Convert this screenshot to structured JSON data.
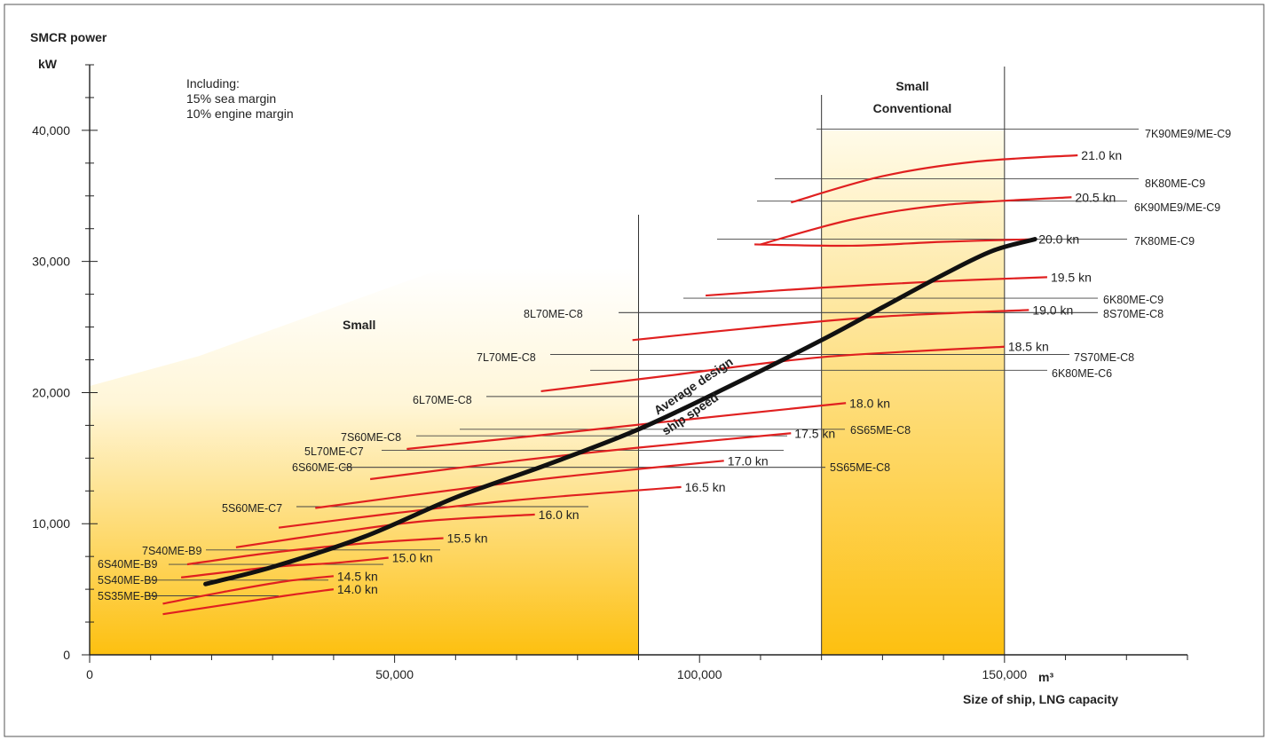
{
  "chart_data": {
    "type": "line",
    "ylabel_line1": "SMCR power",
    "ylabel_line2": "kW",
    "xlabel": "Size of ship, LNG capacity",
    "x_unit": "m³",
    "x_ticks": [
      "0",
      "50,000",
      "100,000",
      "150,000"
    ],
    "x_tick_values": [
      0,
      50000,
      100000,
      150000
    ],
    "y_ticks": [
      "0",
      "10,000",
      "20,000",
      "30,000",
      "40,000"
    ],
    "y_tick_values": [
      0,
      10000,
      20000,
      30000,
      40000
    ],
    "xlim": [
      0,
      180000
    ],
    "ylim": [
      0,
      45000
    ],
    "note": [
      "Including:",
      "15% sea margin",
      "10% engine margin"
    ],
    "colors": {
      "speed_curve": "#e02020",
      "average_curve": "#111111",
      "band_top": "#fffbe9",
      "band_bottom": "#fdc010"
    },
    "regions": [
      {
        "label": "Small",
        "x0": 0,
        "x1": 90000
      },
      {
        "label": "Small Conventional",
        "x0": 120000,
        "x1": 150000
      }
    ],
    "region_labels": {
      "small": "Small",
      "conventional_line1": "Small",
      "conventional_line2": "Conventional"
    },
    "average_curve": {
      "label_line1": "Average design",
      "label_line2": "ship speed",
      "points": [
        [
          19000,
          5400
        ],
        [
          30000,
          6700
        ],
        [
          45000,
          9000
        ],
        [
          60000,
          12000
        ],
        [
          75000,
          14500
        ],
        [
          90000,
          17200
        ],
        [
          105000,
          20500
        ],
        [
          120000,
          24000
        ],
        [
          130000,
          26500
        ],
        [
          140000,
          29000
        ],
        [
          148000,
          30800
        ],
        [
          155000,
          31700
        ]
      ]
    },
    "speed_curves": [
      {
        "label": "14.0 kn",
        "points": [
          [
            12000,
            3100
          ],
          [
            22000,
            3800
          ],
          [
            32000,
            4500
          ],
          [
            40000,
            5000
          ]
        ]
      },
      {
        "label": "14.5 kn",
        "points": [
          [
            12000,
            3900
          ],
          [
            22000,
            4800
          ],
          [
            32000,
            5600
          ],
          [
            40000,
            6000
          ]
        ]
      },
      {
        "label": "15.0 kn",
        "points": [
          [
            15000,
            5900
          ],
          [
            30000,
            6700
          ],
          [
            40000,
            7000
          ],
          [
            49000,
            7400
          ]
        ]
      },
      {
        "label": "15.5 kn",
        "points": [
          [
            16000,
            6900
          ],
          [
            30000,
            7800
          ],
          [
            45000,
            8500
          ],
          [
            58000,
            8900
          ]
        ]
      },
      {
        "label": "16.0 kn",
        "points": [
          [
            24000,
            8200
          ],
          [
            40000,
            9300
          ],
          [
            55000,
            10200
          ],
          [
            73000,
            10700
          ]
        ]
      },
      {
        "label": "16.5 kn",
        "points": [
          [
            31000,
            9700
          ],
          [
            50000,
            10800
          ],
          [
            70000,
            11800
          ],
          [
            97000,
            12800
          ]
        ]
      },
      {
        "label": "17.0 kn",
        "points": [
          [
            37000,
            11200
          ],
          [
            60000,
            12600
          ],
          [
            80000,
            13700
          ],
          [
            104000,
            14800
          ]
        ]
      },
      {
        "label": "17.5 kn",
        "points": [
          [
            46000,
            13400
          ],
          [
            70000,
            14800
          ],
          [
            90000,
            15800
          ],
          [
            115000,
            16900
          ]
        ]
      },
      {
        "label": "18.0 kn",
        "points": [
          [
            52000,
            15700
          ],
          [
            75000,
            16800
          ],
          [
            95000,
            17800
          ],
          [
            124000,
            19200
          ]
        ]
      },
      {
        "label": "18.5 kn",
        "points": [
          [
            74000,
            20100
          ],
          [
            95000,
            21300
          ],
          [
            120000,
            22700
          ],
          [
            150000,
            23500
          ]
        ]
      },
      {
        "label": "19.0 kn",
        "points": [
          [
            89000,
            24000
          ],
          [
            110000,
            25000
          ],
          [
            130000,
            25800
          ],
          [
            154000,
            26300
          ]
        ]
      },
      {
        "label": "19.5 kn",
        "points": [
          [
            101000,
            27400
          ],
          [
            120000,
            28000
          ],
          [
            140000,
            28500
          ],
          [
            157000,
            28800
          ]
        ]
      },
      {
        "label": "20.0 kn",
        "points": [
          [
            109000,
            31300
          ],
          [
            125000,
            31200
          ],
          [
            140000,
            31500
          ],
          [
            155000,
            31700
          ]
        ]
      },
      {
        "label": "20.5 kn",
        "points": [
          [
            110000,
            31300
          ],
          [
            125000,
            33200
          ],
          [
            140000,
            34300
          ],
          [
            161000,
            34900
          ]
        ]
      },
      {
        "label": "21.0 kn",
        "points": [
          [
            115000,
            34500
          ],
          [
            130000,
            36500
          ],
          [
            145000,
            37600
          ],
          [
            162000,
            38100
          ]
        ]
      }
    ],
    "engine_lines": [
      {
        "label": "5S35ME-B9",
        "y": 4500,
        "x0": 13000,
        "x1": 31000
      },
      {
        "label": "5S40ME-B9",
        "y": 5700,
        "x0": 13000,
        "x1": 39000
      },
      {
        "label": "6S40ME-B9",
        "y": 6900,
        "x0": 13000,
        "x1": 48000
      },
      {
        "label": "7S40ME-B9",
        "y": 8000,
        "x0": 19000,
        "x1": 57000
      },
      {
        "label": "5S60ME-C7",
        "y": 11300,
        "x0": 34000,
        "x1": 82000
      },
      {
        "label": "6S60ME-C8",
        "y": 14300,
        "x0": 51000,
        "x1": 123000
      },
      {
        "label": "5S65ME-C8",
        "y": 14300,
        "x0": 51000,
        "x1": 123000
      },
      {
        "label": "5L70ME-C7",
        "y": 15600,
        "x0": 54000,
        "x1": 114000
      },
      {
        "label": "7S60ME-C8",
        "y": 16700,
        "x0": 57000,
        "x1": 115000
      },
      {
        "label": "6S65ME-C8",
        "y": 17200,
        "x0": 61000,
        "x1": 127000
      },
      {
        "label": "6L70ME-C8",
        "y": 19700,
        "x0": 65000,
        "x1": 120000
      },
      {
        "label": "6K80ME-C6",
        "y": 21700,
        "x0": 82000,
        "x1": 157000
      },
      {
        "label": "7L70ME-C8",
        "y": 22900,
        "x0": 80000,
        "x1": 140000
      },
      {
        "label": "7S70ME-C8",
        "y": 22900,
        "x0": 80000,
        "x1": 140000
      },
      {
        "label": "8L70ME-C8",
        "y": 26100,
        "x0": 94000,
        "x1": 154000
      },
      {
        "label": "8S70ME-C8",
        "y": 26100,
        "x0": 94000,
        "x1": 154000
      },
      {
        "label": "6K80ME-C9",
        "y": 27200,
        "x0": 97000,
        "x1": 160000
      },
      {
        "label": "7K80ME-C9",
        "y": 31700,
        "x0": 103000,
        "x1": 155000
      },
      {
        "label": "6K90ME9/ME-C9",
        "y": 34600,
        "x0": 109000,
        "x1": 160000
      },
      {
        "label": "8K80ME-C9",
        "y": 36300,
        "x0": 112000,
        "x1": 160000
      },
      {
        "label": "7K90ME9/ME-C9",
        "y": 40100,
        "x0": 119000,
        "x1": 166000
      }
    ]
  }
}
